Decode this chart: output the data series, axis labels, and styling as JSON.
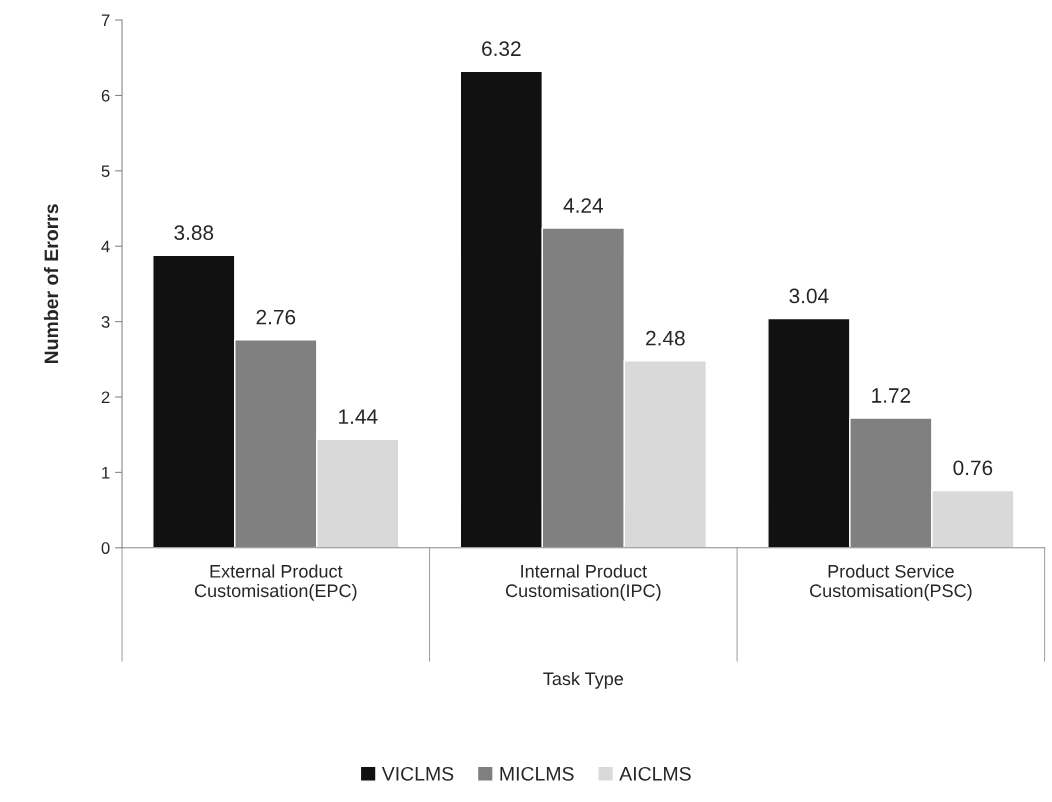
{
  "chart_data": {
    "type": "bar",
    "xlabel": "Task Type",
    "ylabel": "Number of Erorrs",
    "categories": [
      "External Product\nCustomisation(EPC)",
      "Internal Product\nCustomisation(IPC)",
      "Product Service\nCustomisation(PSC)"
    ],
    "series": [
      {
        "name": "VICLMS",
        "color": "#111111",
        "values": [
          3.88,
          6.32,
          3.04
        ]
      },
      {
        "name": "MICLMS",
        "color": "#808080",
        "values": [
          2.76,
          4.24,
          1.72
        ]
      },
      {
        "name": "AICLMS",
        "color": "#d9d9d9",
        "values": [
          1.44,
          2.48,
          0.76
        ]
      }
    ],
    "ylim": [
      0,
      7
    ],
    "yticks": [
      0,
      1,
      2,
      3,
      4,
      5,
      6,
      7
    ],
    "grid": false,
    "legend": "bottom",
    "data_labels": true
  }
}
